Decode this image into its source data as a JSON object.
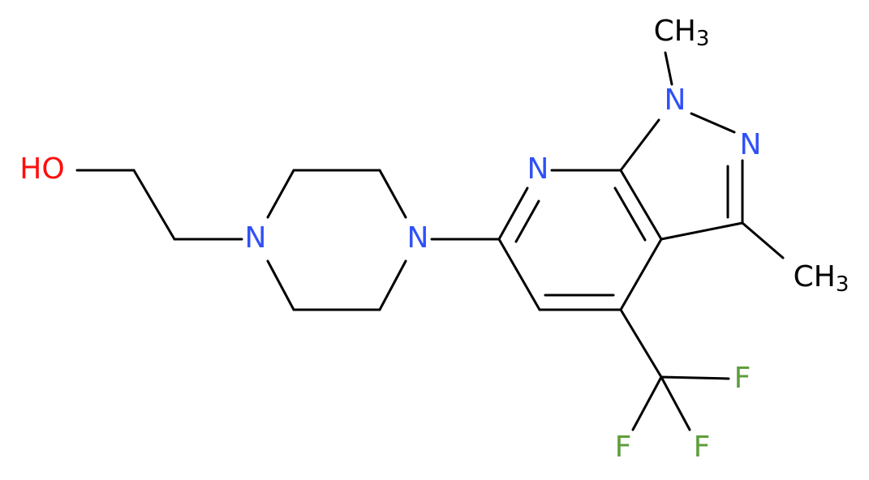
{
  "atoms": [
    {
      "label": "HO"
    },
    {
      "label": "N"
    },
    {
      "label": "N"
    },
    {
      "label": "N"
    },
    {
      "label": "N"
    },
    {
      "label": "N"
    },
    {
      "label": "CH",
      "sub": "3"
    },
    {
      "label": "CH",
      "sub": "3"
    },
    {
      "label": "F"
    },
    {
      "label": "F"
    },
    {
      "label": "F"
    }
  ]
}
